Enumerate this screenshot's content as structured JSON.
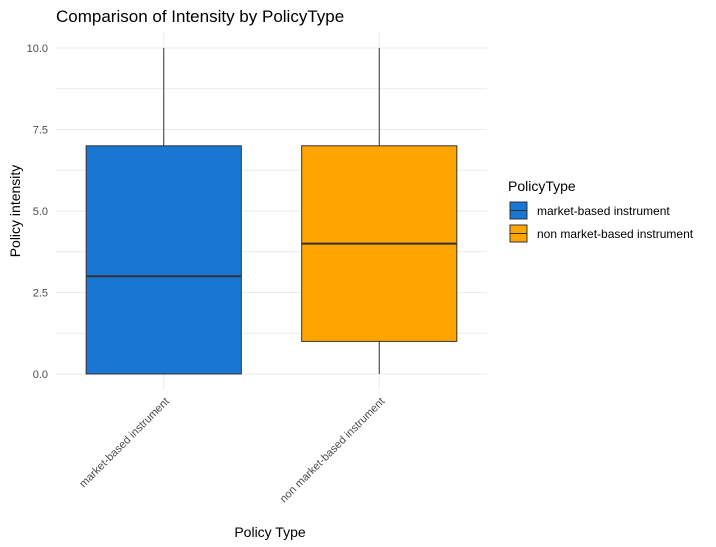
{
  "chart_data": {
    "type": "boxplot",
    "title": "Comparison of Intensity by PolicyType",
    "xlabel": "Policy Type",
    "ylabel": "Policy intensity",
    "ylim": [
      0,
      10
    ],
    "yticks": [
      "0.0",
      "2.5",
      "5.0",
      "7.5",
      "10.0"
    ],
    "ytick_values": [
      0,
      2.5,
      5,
      7.5,
      10
    ],
    "categories": [
      "market-based instrument",
      "non market-based instrument"
    ],
    "boxes": [
      {
        "category": "market-based instrument",
        "min": 0,
        "q1": 0,
        "median": 3,
        "q3": 7,
        "max": 10
      },
      {
        "category": "non market-based instrument",
        "min": 0,
        "q1": 1,
        "median": 4,
        "q3": 7,
        "max": 10
      }
    ],
    "grid": true,
    "legend": {
      "title": "PolicyType",
      "placement": "right",
      "items": [
        "market-based instrument",
        "non market-based instrument"
      ]
    }
  },
  "colors": {
    "series": [
      "#1976D2",
      "#FFA500"
    ],
    "grid": "#ebebeb",
    "outline": "#333333"
  }
}
